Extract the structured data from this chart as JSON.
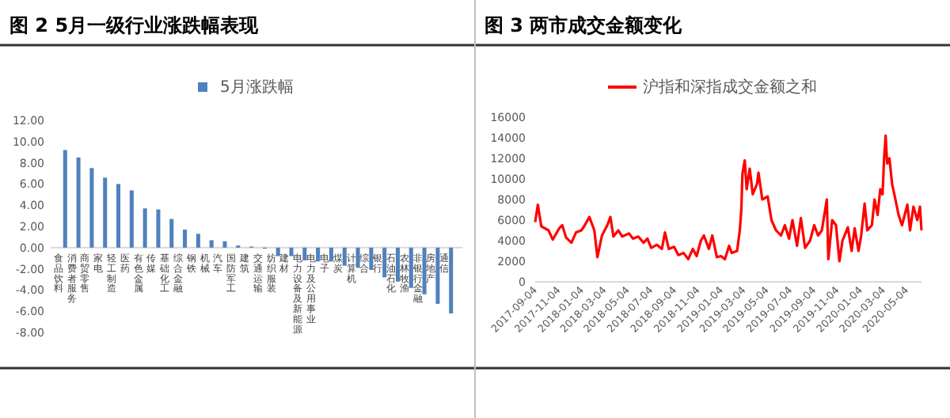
{
  "chart_data": [
    {
      "type": "bar",
      "title": "图 2 5月一级行业涨跌幅表现",
      "categories": [
        "食品饮料",
        "消费者服务",
        "商贸零售",
        "家电",
        "轻工制造",
        "医药",
        "有色金属",
        "传媒",
        "基础化工",
        "综合金融",
        "钢铁",
        "机械",
        "汽车",
        "国防军工",
        "建筑",
        "交通运输",
        "纺织服装",
        "建材",
        "电力设备及新能源",
        "电力及公用事业",
        "电子",
        "煤炭",
        "计算机",
        "综合",
        "银行",
        "石油石化",
        "农林牧渔",
        "非银行金融",
        "房地产",
        "通信"
      ],
      "series": [
        {
          "name": "5月涨跌幅",
          "color": "#4f81bd",
          "values": [
            9.2,
            8.5,
            7.5,
            6.6,
            6.0,
            5.4,
            3.7,
            3.6,
            2.7,
            1.7,
            1.3,
            0.7,
            0.6,
            0.2,
            0.1,
            -0.1,
            -0.8,
            -0.8,
            -1.2,
            -1.3,
            -1.3,
            -1.7,
            -1.9,
            -2.1,
            -2.8,
            -3.2,
            -3.8,
            -4.4,
            -5.3,
            -6.2
          ]
        }
      ],
      "ylim": [
        -8,
        12
      ],
      "yticks": [
        {
          "value": -8,
          "label": "-8.00"
        },
        {
          "value": -6,
          "label": "-6.00"
        },
        {
          "value": -4,
          "label": "-4.00"
        },
        {
          "value": -2,
          "label": "-2.00"
        },
        {
          "value": 0,
          "label": "0.00"
        },
        {
          "value": 2,
          "label": "2.00"
        },
        {
          "value": 4,
          "label": "4.00"
        },
        {
          "value": 6,
          "label": "6.00"
        },
        {
          "value": 8,
          "label": "8.00"
        },
        {
          "value": 10,
          "label": "10.00"
        },
        {
          "value": 12,
          "label": "12.00"
        }
      ],
      "legend": "top"
    },
    {
      "type": "line",
      "title": "图 3 两市成交金额变化",
      "x": [
        "2017-09-04",
        "2017-09-11",
        "2017-09-20",
        "2017-10-09",
        "2017-10-20",
        "2017-11-06",
        "2017-11-14",
        "2017-11-24",
        "2017-12-08",
        "2017-12-20",
        "2018-01-03",
        "2018-01-12",
        "2018-01-24",
        "2018-02-06",
        "2018-02-14",
        "2018-02-26",
        "2018-03-12",
        "2018-03-20",
        "2018-03-28",
        "2018-04-10",
        "2018-04-20",
        "2018-05-08",
        "2018-05-18",
        "2018-06-01",
        "2018-06-15",
        "2018-06-25",
        "2018-07-05",
        "2018-07-20",
        "2018-08-02",
        "2018-08-10",
        "2018-08-20",
        "2018-09-03",
        "2018-09-14",
        "2018-09-28",
        "2018-10-10",
        "2018-10-22",
        "2018-11-01",
        "2018-11-12",
        "2018-11-20",
        "2018-12-03",
        "2018-12-12",
        "2018-12-24",
        "2019-01-04",
        "2019-01-14",
        "2019-01-25",
        "2019-02-01",
        "2019-02-15",
        "2019-02-22",
        "2019-02-26",
        "2019-03-01",
        "2019-03-07",
        "2019-03-12",
        "2019-03-20",
        "2019-03-28",
        "2019-04-08",
        "2019-04-12",
        "2019-04-22",
        "2019-05-06",
        "2019-05-16",
        "2019-05-28",
        "2019-06-10",
        "2019-06-20",
        "2019-07-01",
        "2019-07-10",
        "2019-07-22",
        "2019-08-01",
        "2019-08-12",
        "2019-08-25",
        "2019-09-05",
        "2019-09-15",
        "2019-09-25",
        "2019-10-08",
        "2019-10-12",
        "2019-10-22",
        "2019-11-01",
        "2019-11-10",
        "2019-11-18",
        "2019-12-02",
        "2019-12-12",
        "2019-12-20",
        "2019-12-30",
        "2020-01-06",
        "2020-01-15",
        "2020-01-22",
        "2020-02-03",
        "2020-02-10",
        "2020-02-18",
        "2020-02-25",
        "2020-03-02",
        "2020-03-06",
        "2020-03-10",
        "2020-03-14",
        "2020-03-20",
        "2020-03-27",
        "2020-04-03",
        "2020-04-13",
        "2020-04-22",
        "2020-05-06",
        "2020-05-13",
        "2020-05-22",
        "2020-06-01",
        "2020-06-08",
        "2020-06-12"
      ],
      "series": [
        {
          "name": "沪指和深指成交金额之和",
          "color": "#ff0000",
          "values": [
            5800,
            7500,
            5400,
            5000,
            4100,
            5200,
            5500,
            4300,
            3800,
            4800,
            5000,
            5500,
            6300,
            5000,
            2400,
            4500,
            5500,
            6300,
            4400,
            5000,
            4400,
            4700,
            4200,
            4400,
            3800,
            4200,
            3300,
            3600,
            3200,
            4800,
            3200,
            3400,
            2600,
            2800,
            2200,
            3200,
            2500,
            4000,
            4500,
            3200,
            4500,
            2400,
            2500,
            2200,
            3500,
            2800,
            3000,
            5000,
            7000,
            10500,
            11800,
            9000,
            11000,
            8500,
            9500,
            10600,
            8000,
            8300,
            6000,
            5000,
            4500,
            5500,
            4200,
            6000,
            3500,
            6200,
            3300,
            4000,
            5500,
            4500,
            5000,
            8000,
            2200,
            6000,
            5500,
            2000,
            4000,
            5300,
            3000,
            5200,
            3000,
            4500,
            7600,
            5000,
            5500,
            8000,
            6500,
            9000,
            8500,
            12000,
            14200,
            11500,
            12000,
            9500,
            8300,
            6500,
            5500,
            7500,
            5000,
            7300,
            6000,
            7300,
            5000
          ]
        }
      ],
      "xlim": [
        "2017-09-04",
        "2020-06-12"
      ],
      "xticks": [
        "2017-09-04",
        "2017-11-04",
        "2018-01-04",
        "2018-03-04",
        "2018-05-04",
        "2018-07-04",
        "2018-09-04",
        "2018-11-04",
        "2019-01-04",
        "2019-03-04",
        "2019-05-04",
        "2019-07-04",
        "2019-09-04",
        "2019-11-04",
        "2020-01-04",
        "2020-03-04",
        "2020-05-04"
      ],
      "ylim": [
        0,
        16000
      ],
      "yticks": [
        0,
        2000,
        4000,
        6000,
        8000,
        10000,
        12000,
        14000,
        16000
      ],
      "legend": "top",
      "line_style": "solid",
      "marker": "none"
    }
  ]
}
